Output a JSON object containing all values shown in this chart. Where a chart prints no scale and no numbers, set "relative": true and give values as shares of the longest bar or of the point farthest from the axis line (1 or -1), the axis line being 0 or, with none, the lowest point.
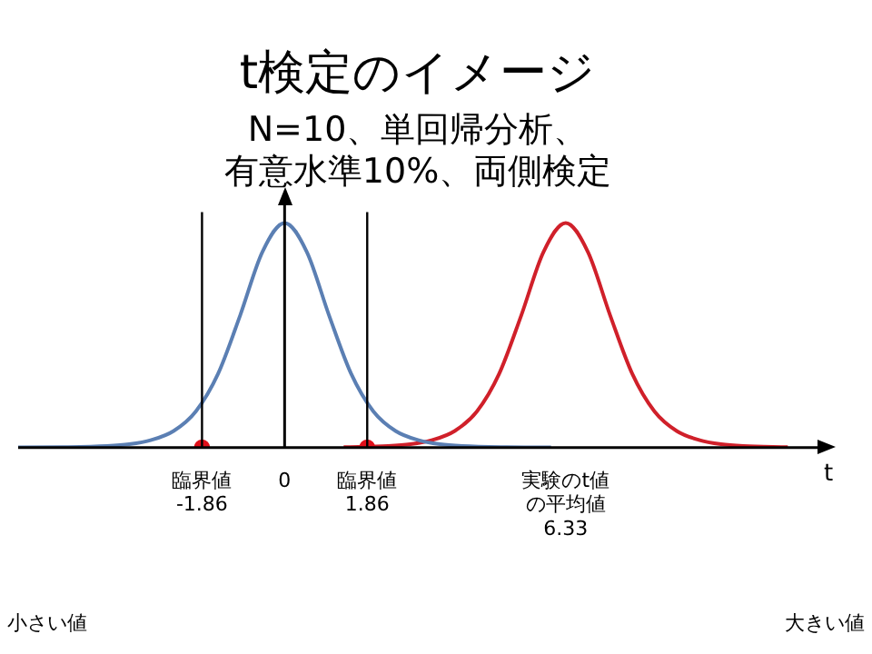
{
  "chart_data": {
    "type": "line",
    "title": "t検定のイメージ",
    "subtitle": "N=10、単回帰分析、有意水準10%、両側検定",
    "xlabel": "t",
    "relative": true,
    "xlim": [
      -6,
      12
    ],
    "xticks": [
      {
        "value": -1.86,
        "label": "臨界値\n-1.86"
      },
      0,
      {
        "value": 1.86,
        "label": "臨界値\n1.86"
      },
      {
        "value": 6.33,
        "label": "実験のt値の平均値\n6.33"
      }
    ],
    "legend": false,
    "marker": "none",
    "line_style": "solid",
    "series": [
      {
        "color": "#5b7fb3",
        "x": [
          -6,
          -5,
          -4,
          -3.5,
          -3,
          -2.5,
          -2,
          -1.5,
          -1,
          -0.5,
          0,
          0.5,
          1,
          1.5,
          2,
          2.5,
          3,
          3.5,
          4,
          5,
          6
        ],
        "values": [
          0.001,
          0.002,
          0.007,
          0.015,
          0.034,
          0.074,
          0.161,
          0.328,
          0.589,
          0.871,
          1,
          0.871,
          0.589,
          0.328,
          0.161,
          0.074,
          0.034,
          0.015,
          0.007,
          0.002,
          0.001
        ]
      },
      {
        "color": "#d0202a",
        "x": [
          1.33,
          2.33,
          2.83,
          3.33,
          3.83,
          4.33,
          4.83,
          5.33,
          5.83,
          6.33,
          6.83,
          7.33,
          7.83,
          8.33,
          8.83,
          9.33,
          9.83,
          10.33,
          11.33
        ],
        "values": [
          0.002,
          0.007,
          0.015,
          0.034,
          0.074,
          0.161,
          0.328,
          0.589,
          0.871,
          1,
          0.871,
          0.589,
          0.328,
          0.161,
          0.074,
          0.034,
          0.015,
          0.007,
          0.002
        ]
      },
      {
        "type": "scatter",
        "marker": "circle",
        "color": "#e0101a",
        "x": [
          -1.86,
          1.86
        ],
        "values": [
          0,
          0
        ]
      }
    ],
    "ref_lines": [
      {
        "axis": "x",
        "value": -1.86,
        "color": "#000000"
      },
      {
        "axis": "x",
        "value": 1.86,
        "color": "#000000"
      }
    ],
    "annotations": [
      "小さい値",
      "大きい値"
    ]
  }
}
